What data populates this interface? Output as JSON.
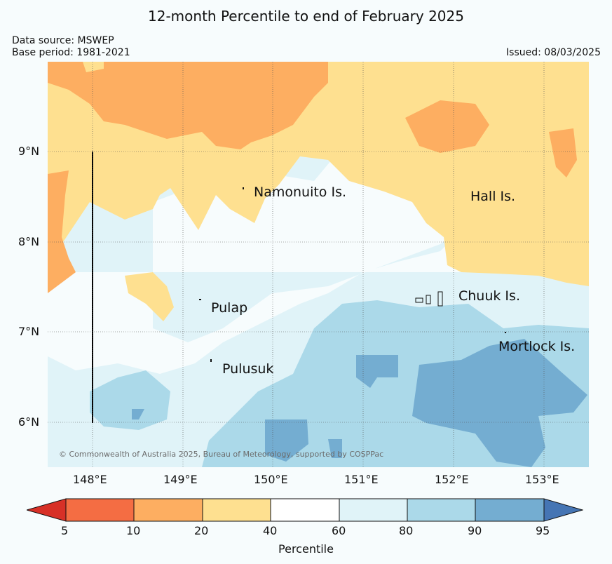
{
  "title": "12-month Percentile to end of February 2025",
  "data_source": "Data source: MSWEP",
  "base_period": "Base period: 1981-2021",
  "issued": "Issued: 08/03/2025",
  "copyright": "© Commonwealth of Australia 2025, Bureau of Meteorology, supported by COSPPac",
  "lon_labels": [
    "148°E",
    "149°E",
    "150°E",
    "151°E",
    "152°E",
    "153°E"
  ],
  "lat_labels": [
    "9°N",
    "8°N",
    "7°N",
    "6°N"
  ],
  "places": {
    "namonuito": "Namonuito Is.",
    "hall": "Hall Is.",
    "pulap": "Pulap",
    "chuuk": "Chuuk Is.",
    "pulusuk": "Pulusuk",
    "mortlock": "Mortlock Is."
  },
  "colorbar": {
    "title": "Percentile",
    "ticks": [
      "5",
      "10",
      "20",
      "40",
      "60",
      "80",
      "90",
      "95"
    ],
    "colors": {
      "below_5": "#d73027",
      "5_10": "#f46d43",
      "10_20": "#fdae61",
      "20_40": "#fee090",
      "40_60": "#ffffff",
      "60_80": "#e0f3f8",
      "80_90": "#abd9e9",
      "90_95": "#74add1",
      "above_95": "#4575b4"
    }
  }
}
